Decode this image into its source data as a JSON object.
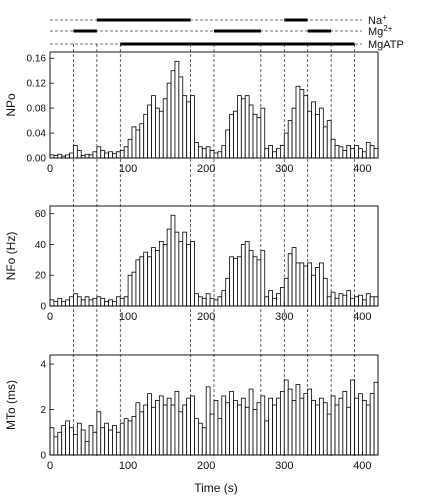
{
  "protocol": {
    "bars": [
      {
        "label": "Na",
        "superscript": "+",
        "segments": [
          [
            60,
            180
          ],
          [
            300,
            330
          ]
        ]
      },
      {
        "label": "Mg",
        "superscript": "2+",
        "segments": [
          [
            30,
            60
          ],
          [
            210,
            270
          ],
          [
            330,
            360
          ]
        ]
      },
      {
        "label": "MgATP",
        "superscript": "",
        "segments": [
          [
            90,
            390
          ]
        ]
      }
    ]
  },
  "markers": [
    30,
    60,
    90,
    180,
    210,
    270,
    300,
    330,
    360,
    390
  ],
  "x_axis": {
    "label": "Time (s)",
    "range": [
      0,
      420
    ],
    "ticks": [
      0,
      100,
      200,
      300,
      400
    ]
  },
  "chart_data": [
    {
      "type": "bar",
      "ylabel": "NPo",
      "ylim": [
        0,
        0.17
      ],
      "yticks": [
        0.0,
        0.04,
        0.08,
        0.12,
        0.16
      ],
      "yticklabels": [
        "0.00",
        "0.04",
        "0.08",
        "0.12",
        "0.16"
      ],
      "bin_width": 5,
      "x": [
        0,
        5,
        10,
        15,
        20,
        25,
        30,
        35,
        40,
        45,
        50,
        55,
        60,
        65,
        70,
        75,
        80,
        85,
        90,
        95,
        100,
        105,
        110,
        115,
        120,
        125,
        130,
        135,
        140,
        145,
        150,
        155,
        160,
        165,
        170,
        175,
        180,
        185,
        190,
        195,
        200,
        205,
        210,
        215,
        220,
        225,
        230,
        235,
        240,
        245,
        250,
        255,
        260,
        265,
        270,
        275,
        280,
        285,
        290,
        295,
        300,
        305,
        310,
        315,
        320,
        325,
        330,
        335,
        340,
        345,
        350,
        355,
        360,
        365,
        370,
        375,
        380,
        385,
        390,
        395,
        400,
        405,
        410,
        415
      ],
      "values": [
        0.005,
        0.004,
        0.006,
        0.003,
        0.005,
        0.008,
        0.02,
        0.012,
        0.004,
        0.006,
        0.005,
        0.01,
        0.018,
        0.012,
        0.008,
        0.01,
        0.007,
        0.01,
        0.012,
        0.018,
        0.03,
        0.05,
        0.045,
        0.055,
        0.07,
        0.085,
        0.1,
        0.08,
        0.075,
        0.095,
        0.12,
        0.14,
        0.155,
        0.13,
        0.1,
        0.09,
        0.1,
        0.025,
        0.018,
        0.015,
        0.018,
        0.012,
        0.008,
        0.01,
        0.02,
        0.045,
        0.07,
        0.075,
        0.1,
        0.095,
        0.1,
        0.085,
        0.07,
        0.065,
        0.08,
        0.015,
        0.02,
        0.01,
        0.015,
        0.02,
        0.04,
        0.06,
        0.08,
        0.115,
        0.11,
        0.1,
        0.075,
        0.09,
        0.07,
        0.08,
        0.05,
        0.06,
        0.03,
        0.02,
        0.018,
        0.012,
        0.02,
        0.015,
        0.02,
        0.015,
        0.01,
        0.025,
        0.02,
        0.015
      ]
    },
    {
      "type": "bar",
      "ylabel": "NFo (Hz)",
      "ylim": [
        0,
        65
      ],
      "yticks": [
        0,
        20,
        40,
        60
      ],
      "yticklabels": [
        "0",
        "20",
        "40",
        "60"
      ],
      "bin_width": 5,
      "x": [
        0,
        5,
        10,
        15,
        20,
        25,
        30,
        35,
        40,
        45,
        50,
        55,
        60,
        65,
        70,
        75,
        80,
        85,
        90,
        95,
        100,
        105,
        110,
        115,
        120,
        125,
        130,
        135,
        140,
        145,
        150,
        155,
        160,
        165,
        170,
        175,
        180,
        185,
        190,
        195,
        200,
        205,
        210,
        215,
        220,
        225,
        230,
        235,
        240,
        245,
        250,
        255,
        260,
        265,
        270,
        275,
        280,
        285,
        290,
        295,
        300,
        305,
        310,
        315,
        320,
        325,
        330,
        335,
        340,
        345,
        350,
        355,
        360,
        365,
        370,
        375,
        380,
        385,
        390,
        395,
        400,
        405,
        410,
        415
      ],
      "values": [
        4,
        3,
        5,
        3,
        4,
        6,
        8,
        6,
        4,
        6,
        4,
        5,
        6,
        5,
        3,
        4,
        3,
        6,
        5,
        6,
        20,
        22,
        30,
        32,
        35,
        32,
        38,
        36,
        42,
        40,
        50,
        59,
        48,
        42,
        48,
        40,
        42,
        8,
        6,
        5,
        8,
        5,
        4,
        6,
        10,
        18,
        32,
        31,
        32,
        40,
        42,
        36,
        32,
        30,
        36,
        6,
        10,
        5,
        8,
        12,
        18,
        34,
        38,
        28,
        28,
        26,
        28,
        20,
        25,
        28,
        18,
        6,
        9,
        5,
        8,
        7,
        10,
        5,
        6,
        7,
        4,
        8,
        6,
        6
      ]
    },
    {
      "type": "bar",
      "ylabel": "MTo (ms)",
      "ylim": [
        0,
        4.4
      ],
      "yticks": [
        0,
        2,
        4
      ],
      "yticklabels": [
        "0",
        "2",
        "4"
      ],
      "bin_width": 5,
      "x": [
        0,
        5,
        10,
        15,
        20,
        25,
        30,
        35,
        40,
        45,
        50,
        55,
        60,
        65,
        70,
        75,
        80,
        85,
        90,
        95,
        100,
        105,
        110,
        115,
        120,
        125,
        130,
        135,
        140,
        145,
        150,
        155,
        160,
        165,
        170,
        175,
        180,
        185,
        190,
        195,
        200,
        205,
        210,
        215,
        220,
        225,
        230,
        235,
        240,
        245,
        250,
        255,
        260,
        265,
        270,
        275,
        280,
        285,
        290,
        295,
        300,
        305,
        310,
        315,
        320,
        325,
        330,
        335,
        340,
        345,
        350,
        355,
        360,
        365,
        370,
        375,
        380,
        385,
        390,
        395,
        400,
        405,
        410,
        415
      ],
      "values": [
        1.2,
        0.8,
        1.0,
        1.3,
        1.5,
        1.2,
        0.9,
        1.4,
        1.1,
        0.6,
        1.3,
        1.0,
        1.9,
        1.2,
        1.4,
        1.1,
        1.3,
        1.0,
        1.4,
        1.6,
        1.5,
        1.7,
        2.3,
        1.9,
        2.2,
        2.7,
        2.1,
        2.4,
        2.6,
        2.2,
        2.5,
        2.2,
        2.8,
        1.9,
        2.2,
        2.5,
        2.6,
        1.6,
        1.4,
        1.2,
        3.0,
        1.8,
        2.4,
        1.6,
        2.6,
        2.3,
        2.8,
        2.4,
        2.2,
        2.5,
        2.1,
        2.9,
        2.0,
        2.3,
        2.6,
        1.5,
        2.5,
        2.2,
        2.5,
        2.8,
        3.3,
        2.9,
        2.4,
        3.1,
        2.5,
        2.7,
        2.9,
        2.4,
        2.2,
        2.5,
        2.3,
        1.8,
        2.6,
        2.2,
        2.5,
        2.8,
        2.1,
        3.3,
        2.5,
        2.7,
        2.4,
        2.2,
        2.7,
        3.2
      ]
    }
  ]
}
